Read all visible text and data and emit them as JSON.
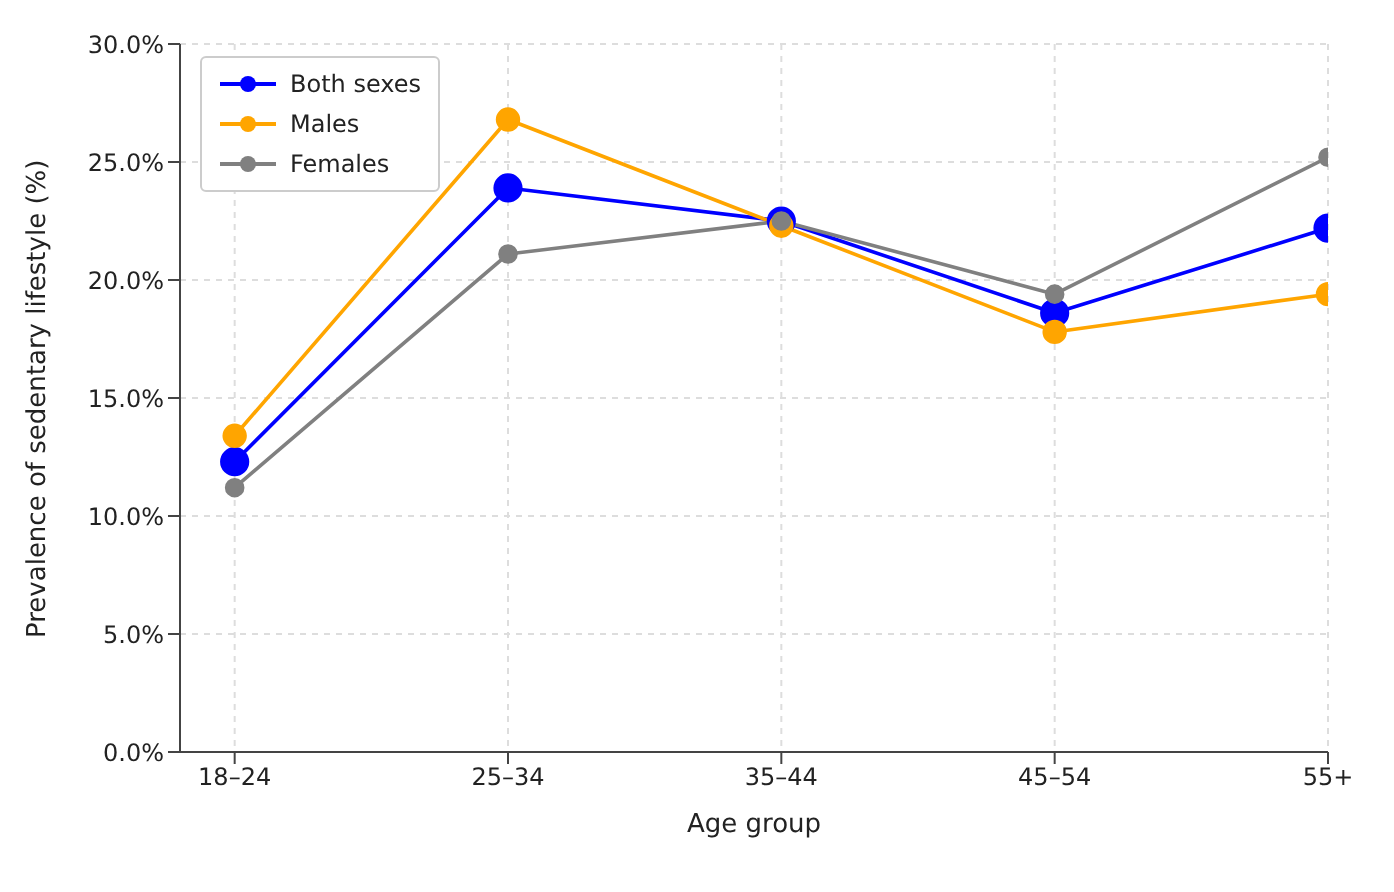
{
  "chart_data": {
    "type": "line",
    "xlabel": "Age group",
    "ylabel": "Prevalence of sedentary lifestyle (%)",
    "categories": [
      "18–24",
      "25–34",
      "35–44",
      "45–54",
      "55+"
    ],
    "series": [
      {
        "name": "Both sexes",
        "color": "#0000ff",
        "values": [
          12.3,
          23.9,
          22.5,
          18.6,
          22.2
        ]
      },
      {
        "name": "Males",
        "color": "#ffa500",
        "values": [
          13.4,
          26.8,
          22.3,
          17.8,
          19.4
        ]
      },
      {
        "name": "Females",
        "color": "#808080",
        "values": [
          11.2,
          21.1,
          22.5,
          19.4,
          25.2
        ]
      }
    ],
    "ylim": [
      0,
      30
    ],
    "yticks": [
      {
        "value": 0,
        "label": "0.0%"
      },
      {
        "value": 5,
        "label": "5.0%"
      },
      {
        "value": 10,
        "label": "10.0%"
      },
      {
        "value": 15,
        "label": "15.0%"
      },
      {
        "value": 20,
        "label": "20.0%"
      },
      {
        "value": 25,
        "label": "25.0%"
      },
      {
        "value": 30,
        "label": "30.0%"
      }
    ],
    "grid": true,
    "legend": "top left",
    "marker": "circle",
    "line_style": "solid"
  }
}
